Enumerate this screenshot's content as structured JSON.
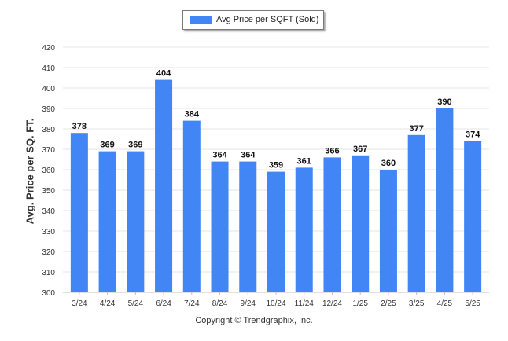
{
  "chart_data": {
    "type": "bar",
    "categories": [
      "3/24",
      "4/24",
      "5/24",
      "6/24",
      "7/24",
      "8/24",
      "9/24",
      "10/24",
      "11/24",
      "12/24",
      "1/25",
      "2/25",
      "3/25",
      "4/25",
      "5/25"
    ],
    "series": [
      {
        "name": "Avg Price per SQFT (Sold)",
        "values": [
          378,
          369,
          369,
          404,
          384,
          364,
          364,
          359,
          361,
          366,
          367,
          360,
          377,
          390,
          374
        ]
      }
    ],
    "ylabel": "Avg. Price per SQ. FT.",
    "xlabel": "",
    "ylim": [
      300,
      420
    ],
    "yticks": [
      300,
      310,
      320,
      330,
      340,
      350,
      360,
      370,
      380,
      390,
      400,
      410,
      420
    ],
    "grid": true,
    "legend": "top-center",
    "bar_color": "#4285f4"
  },
  "footer": "Copyright © Trendgraphix, Inc."
}
